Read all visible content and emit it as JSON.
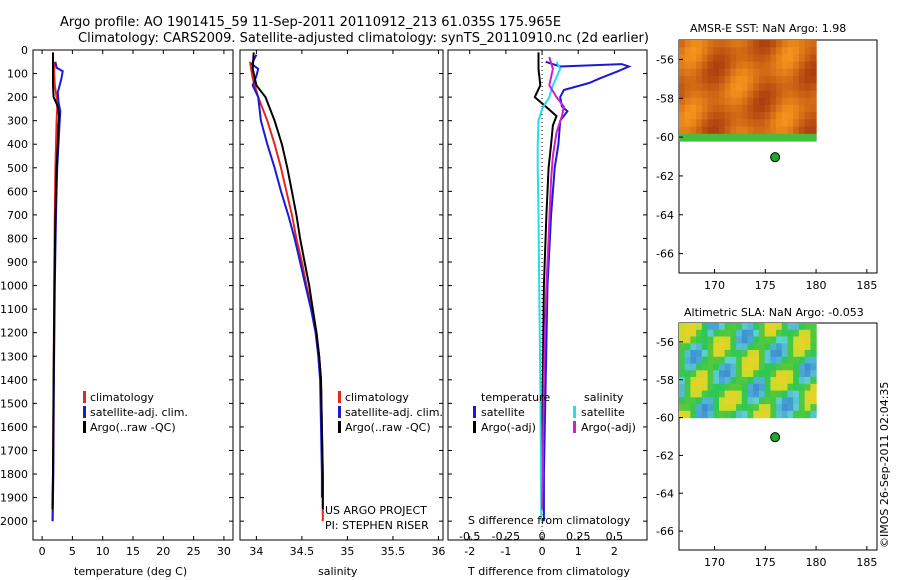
{
  "title": {
    "line1": "Argo profile: AO 1901415_59 11-Sep-2011 20110912_213 61.035S 175.965E",
    "line2": "Climatology: CARS2009. Satellite-adjusted climatology: synTS_20110910.nc (2d earlier)"
  },
  "colors": {
    "climatology": "#e8251c",
    "satellite": "#1a1ad6",
    "argo": "#000000",
    "sal_satellite": "#20e0e8",
    "sal_argo": "#d11bd1",
    "marker": "#1ea82a"
  },
  "panels": {
    "temperature": {
      "xlabel": "temperature (deg C)",
      "legend": [
        "climatology",
        "satellite-adj. clim.",
        "Argo(..raw -QC)"
      ]
    },
    "salinity": {
      "xlabel": "salinity",
      "legend": [
        "climatology",
        "satellite-adj. clim.",
        "Argo(..raw -QC)"
      ],
      "note_line1": "US ARGO PROJECT",
      "note_line2": "PI: STEPHEN RISER"
    },
    "difference": {
      "xlabel": "T difference from climatology",
      "toplabel": "S difference from climatology",
      "legend_temperature_title": "temperature",
      "legend_salinity_title": "salinity",
      "legend_items_t": [
        "satellite",
        "Argo(-adj)"
      ],
      "legend_items_s": [
        "satellite",
        "Argo(-adj)"
      ]
    },
    "sst_map": {
      "title": "AMSR-E SST: NaN Argo: 1.98"
    },
    "sla_map": {
      "title": "Altimetric SLA: NaN Argo: -0.053"
    }
  },
  "timestamp": "©IMOS 26-Sep-2011 02:04:35",
  "chart_data": [
    {
      "type": "line",
      "name": "temperature-profile",
      "xlabel": "temperature (deg C)",
      "xlim": [
        -1.5,
        31.5
      ],
      "ylim": [
        0,
        2080
      ],
      "y_reversed": true,
      "xticks": [
        0,
        5,
        10,
        15,
        20,
        25,
        30
      ],
      "yticks": [
        0,
        100,
        200,
        300,
        400,
        500,
        600,
        700,
        800,
        900,
        1000,
        1100,
        1200,
        1300,
        1400,
        1500,
        1600,
        1700,
        1800,
        1900,
        2000
      ],
      "series": [
        {
          "name": "climatology",
          "color": "#e8251c",
          "points": [
            [
              2.0,
              50
            ],
            [
              2.0,
              100
            ],
            [
              2.1,
              150
            ],
            [
              2.4,
              200
            ],
            [
              2.5,
              250
            ],
            [
              2.4,
              300
            ],
            [
              2.3,
              400
            ],
            [
              2.2,
              500
            ],
            [
              2.1,
              700
            ],
            [
              2.0,
              1000
            ],
            [
              1.9,
              1400
            ],
            [
              1.8,
              1800
            ],
            [
              1.7,
              2000
            ]
          ]
        },
        {
          "name": "satellite-adj. clim.",
          "color": "#1a1ad6",
          "points": [
            [
              2.2,
              50
            ],
            [
              2.4,
              75
            ],
            [
              3.4,
              90
            ],
            [
              3.2,
              120
            ],
            [
              2.6,
              180
            ],
            [
              2.7,
              220
            ],
            [
              3.0,
              260
            ],
            [
              2.9,
              300
            ],
            [
              2.7,
              400
            ],
            [
              2.5,
              500
            ],
            [
              2.3,
              700
            ],
            [
              2.1,
              1000
            ],
            [
              1.95,
              1400
            ],
            [
              1.85,
              1800
            ],
            [
              1.75,
              2000
            ]
          ]
        },
        {
          "name": "Argo(..raw -QC)",
          "color": "#000000",
          "points": [
            [
              1.8,
              10
            ],
            [
              1.8,
              80
            ],
            [
              1.8,
              150
            ],
            [
              1.9,
              200
            ],
            [
              2.6,
              240
            ],
            [
              2.8,
              280
            ],
            [
              2.7,
              320
            ],
            [
              2.6,
              400
            ],
            [
              2.4,
              500
            ],
            [
              2.2,
              700
            ],
            [
              2.05,
              1000
            ],
            [
              1.9,
              1400
            ],
            [
              1.8,
              1800
            ],
            [
              1.7,
              1950
            ]
          ]
        }
      ]
    },
    {
      "type": "line",
      "name": "salinity-profile",
      "xlabel": "salinity",
      "xlim": [
        33.82,
        36.05
      ],
      "ylim": [
        0,
        2080
      ],
      "y_reversed": true,
      "xticks": [
        34,
        34.5,
        35,
        35.5,
        36
      ],
      "series": [
        {
          "name": "climatology",
          "color": "#e8251c",
          "points": [
            [
              33.93,
              50
            ],
            [
              33.96,
              120
            ],
            [
              34.02,
              200
            ],
            [
              34.12,
              300
            ],
            [
              34.2,
              400
            ],
            [
              34.27,
              500
            ],
            [
              34.33,
              600
            ],
            [
              34.39,
              700
            ],
            [
              34.44,
              800
            ],
            [
              34.5,
              900
            ],
            [
              34.55,
              1000
            ],
            [
              34.61,
              1100
            ],
            [
              34.66,
              1200
            ],
            [
              34.69,
              1300
            ],
            [
              34.71,
              1400
            ],
            [
              34.72,
              1600
            ],
            [
              34.73,
              1800
            ],
            [
              34.73,
              2000
            ]
          ]
        },
        {
          "name": "satellite-adj. clim.",
          "color": "#1a1ad6",
          "points": [
            [
              34.0,
              20
            ],
            [
              33.95,
              60
            ],
            [
              34.02,
              80
            ],
            [
              34.0,
              110
            ],
            [
              33.96,
              150
            ],
            [
              34.02,
              200
            ],
            [
              34.05,
              300
            ],
            [
              34.12,
              400
            ],
            [
              34.2,
              500
            ],
            [
              34.27,
              600
            ],
            [
              34.35,
              700
            ],
            [
              34.42,
              800
            ],
            [
              34.48,
              900
            ],
            [
              34.54,
              1000
            ],
            [
              34.6,
              1100
            ],
            [
              34.65,
              1200
            ],
            [
              34.68,
              1300
            ],
            [
              34.7,
              1400
            ],
            [
              34.71,
              1600
            ],
            [
              34.72,
              1800
            ],
            [
              34.72,
              1900
            ]
          ]
        },
        {
          "name": "Argo(..raw -QC)",
          "color": "#000000",
          "points": [
            [
              33.97,
              10
            ],
            [
              33.96,
              80
            ],
            [
              34.0,
              150
            ],
            [
              34.1,
              200
            ],
            [
              34.2,
              300
            ],
            [
              34.28,
              400
            ],
            [
              34.34,
              500
            ],
            [
              34.39,
              600
            ],
            [
              34.44,
              700
            ],
            [
              34.48,
              800
            ],
            [
              34.53,
              900
            ],
            [
              34.58,
              1000
            ],
            [
              34.62,
              1100
            ],
            [
              34.66,
              1200
            ],
            [
              34.69,
              1300
            ],
            [
              34.71,
              1400
            ],
            [
              34.72,
              1600
            ],
            [
              34.73,
              1800
            ],
            [
              34.73,
              1950
            ]
          ]
        }
      ]
    },
    {
      "type": "line",
      "name": "difference-profile",
      "xlabel": "T difference from climatology",
      "top_label": "S difference from climatology",
      "xlim": [
        -2.6,
        2.9
      ],
      "ylim": [
        0,
        2080
      ],
      "y_reversed": true,
      "xticks": [
        -2,
        -1,
        0,
        1,
        2
      ],
      "top_ticks_s": [
        -0.5,
        -0.25,
        0,
        0.25,
        0.5
      ],
      "series": [
        {
          "name": "satellite (temperature)",
          "color": "#1a1ad6",
          "points": [
            [
              0.1,
              50
            ],
            [
              0.5,
              70
            ],
            [
              2.2,
              60
            ],
            [
              2.4,
              70
            ],
            [
              2.1,
              90
            ],
            [
              1.6,
              120
            ],
            [
              1.3,
              140
            ],
            [
              0.6,
              170
            ],
            [
              0.5,
              200
            ],
            [
              0.55,
              240
            ],
            [
              0.7,
              260
            ],
            [
              0.5,
              300
            ],
            [
              0.45,
              400
            ],
            [
              0.35,
              500
            ],
            [
              0.25,
              700
            ],
            [
              0.15,
              1000
            ],
            [
              0.1,
              1400
            ],
            [
              0.05,
              1800
            ],
            [
              0.05,
              2000
            ]
          ]
        },
        {
          "name": "Argo(-adj) (temperature)",
          "color": "#000000",
          "points": [
            [
              -0.1,
              10
            ],
            [
              -0.1,
              80
            ],
            [
              -0.05,
              150
            ],
            [
              -0.2,
              200
            ],
            [
              0.1,
              240
            ],
            [
              0.4,
              280
            ],
            [
              0.3,
              320
            ],
            [
              0.25,
              400
            ],
            [
              0.18,
              500
            ],
            [
              0.12,
              700
            ],
            [
              0.05,
              1000
            ],
            [
              0.02,
              1400
            ],
            [
              0.0,
              1800
            ],
            [
              0.0,
              1950
            ]
          ]
        },
        {
          "name": "satellite (salinity)",
          "color": "#20e0e8",
          "points": [
            [
              0.4,
              50
            ],
            [
              0.5,
              80
            ],
            [
              0.3,
              150
            ],
            [
              0.2,
              200
            ],
            [
              0.0,
              250
            ],
            [
              -0.1,
              300
            ],
            [
              -0.12,
              400
            ],
            [
              -0.12,
              500
            ],
            [
              -0.1,
              700
            ],
            [
              -0.08,
              1000
            ],
            [
              -0.05,
              1400
            ],
            [
              -0.03,
              1800
            ],
            [
              -0.02,
              2000
            ]
          ]
        },
        {
          "name": "Argo(-adj) (salinity)",
          "color": "#d11bd1",
          "points": [
            [
              0.2,
              30
            ],
            [
              0.3,
              80
            ],
            [
              0.2,
              150
            ],
            [
              0.4,
              200
            ],
            [
              0.6,
              240
            ],
            [
              0.55,
              280
            ],
            [
              0.4,
              350
            ],
            [
              0.3,
              450
            ],
            [
              0.25,
              550
            ],
            [
              0.22,
              650
            ],
            [
              0.18,
              800
            ],
            [
              0.12,
              1000
            ],
            [
              0.08,
              1200
            ],
            [
              0.05,
              1400
            ],
            [
              0.03,
              1600
            ],
            [
              0.02,
              1800
            ],
            [
              0.0,
              1950
            ]
          ]
        }
      ]
    },
    {
      "type": "heatmap",
      "name": "amsr-e-sst-map",
      "title": "AMSR-E SST: NaN Argo: 1.98",
      "xlim": [
        166.5,
        186
      ],
      "ylim": [
        -67,
        -55
      ],
      "xticks": [
        170,
        175,
        180,
        185
      ],
      "yticks": [
        -56,
        -58,
        -60,
        -62,
        -64,
        -66
      ],
      "field_extent": {
        "lon": [
          166.5,
          180
        ],
        "lat": [
          -60.2,
          -55
        ]
      },
      "argo_position": {
        "lon": 175.965,
        "lat": -61.035
      }
    },
    {
      "type": "heatmap",
      "name": "altimetric-sla-map",
      "title": "Altimetric SLA: NaN Argo: -0.053",
      "xlim": [
        166.5,
        186
      ],
      "ylim": [
        -67,
        -55
      ],
      "xticks": [
        170,
        175,
        180,
        185
      ],
      "yticks": [
        -56,
        -58,
        -60,
        -62,
        -64,
        -66
      ],
      "field_extent": {
        "lon": [
          166.5,
          180
        ],
        "lat": [
          -60,
          -55
        ]
      },
      "argo_position": {
        "lon": 175.965,
        "lat": -61.035
      }
    }
  ]
}
